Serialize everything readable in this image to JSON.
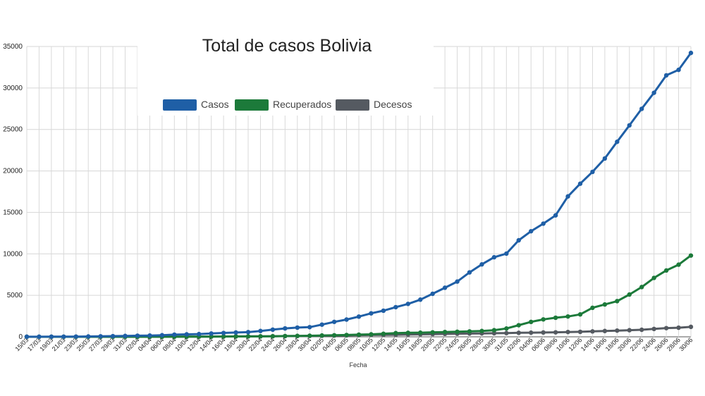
{
  "chart_data": {
    "type": "line",
    "title": "Total de casos Bolivia",
    "xlabel": "Fecha",
    "ylabel": "",
    "ylim": [
      0,
      35000
    ],
    "yticks": [
      "0",
      "5000",
      "10000",
      "15000",
      "20000",
      "25000",
      "30000",
      "35000"
    ],
    "grid": true,
    "legend_position": "top",
    "x_tick_labels": [
      "15/03",
      "17/03",
      "19/03",
      "21/03",
      "23/03",
      "25/03",
      "27/03",
      "29/03",
      "31/03",
      "02/04",
      "04/04",
      "06/04",
      "08/04",
      "10/04",
      "12/04",
      "14/04",
      "16/04",
      "18/04",
      "20/04",
      "22/04",
      "24/04",
      "26/04",
      "28/04",
      "30/04",
      "02/05",
      "04/05",
      "06/05",
      "08/05",
      "10/05",
      "12/05",
      "14/05",
      "16/05",
      "18/05",
      "20/05",
      "22/05",
      "24/05",
      "26/05",
      "28/05",
      "30/05",
      "31/05",
      "02/06",
      "04/06",
      "06/06",
      "08/06",
      "10/06",
      "12/06",
      "14/06",
      "16/06",
      "18/06",
      "20/06",
      "22/06",
      "24/06",
      "26/06",
      "28/06",
      "30/06"
    ],
    "x": [
      "15/03",
      "17/03",
      "19/03",
      "21/03",
      "23/03",
      "25/03",
      "27/03",
      "29/03",
      "31/03",
      "02/04",
      "04/04",
      "06/04",
      "08/04",
      "10/04",
      "12/04",
      "14/04",
      "16/04",
      "18/04",
      "20/04",
      "22/04",
      "24/04",
      "26/04",
      "28/04",
      "30/04",
      "02/05",
      "04/05",
      "06/05",
      "08/05",
      "10/05",
      "12/05",
      "14/05",
      "16/05",
      "18/05",
      "20/05",
      "22/05",
      "24/05",
      "26/05",
      "28/05",
      "30/05",
      "31/05",
      "02/06",
      "04/06",
      "06/06",
      "08/06",
      "10/06",
      "12/06",
      "14/06",
      "16/06",
      "18/06",
      "20/06",
      "22/06",
      "24/06",
      "26/06",
      "28/06",
      "30/06"
    ],
    "series": [
      {
        "name": "Casos",
        "color": "#1f5fa6",
        "values": [
          10,
          11,
          15,
          19,
          28,
          43,
          61,
          81,
          107,
          132,
          157,
          194,
          264,
          300,
          330,
          400,
          465,
          520,
          564,
          703,
          866,
          1014,
          1110,
          1167,
          1470,
          1802,
          2081,
          2437,
          2831,
          3148,
          3577,
          3969,
          4481,
          5187,
          5915,
          6660,
          7768,
          8731,
          9592,
          10031,
          11638,
          12728,
          13643,
          14644,
          16929,
          18459,
          19883,
          21499,
          23512,
          25493,
          27487,
          29423,
          31524,
          32187,
          34227
        ]
      },
      {
        "name": "Recuperados",
        "color": "#1c7a3a",
        "values": [
          0,
          0,
          0,
          0,
          0,
          0,
          1,
          2,
          3,
          4,
          5,
          8,
          10,
          14,
          20,
          25,
          33,
          40,
          45,
          55,
          70,
          90,
          110,
          130,
          160,
          190,
          220,
          260,
          300,
          370,
          450,
          480,
          500,
          540,
          580,
          610,
          650,
          700,
          800,
          1000,
          1400,
          1800,
          2100,
          2300,
          2450,
          2700,
          3500,
          3900,
          4300,
          5100,
          6000,
          7100,
          8000,
          8700,
          9800
        ]
      },
      {
        "name": "Decesos",
        "color": "#555a61",
        "values": [
          0,
          0,
          0,
          0,
          0,
          0,
          1,
          2,
          4,
          6,
          8,
          12,
          18,
          22,
          27,
          32,
          40,
          50,
          56,
          62,
          71,
          82,
          95,
          110,
          130,
          150,
          170,
          200,
          220,
          240,
          250,
          280,
          300,
          320,
          350,
          370,
          390,
          410,
          430,
          450,
          480,
          500,
          520,
          540,
          580,
          600,
          650,
          700,
          750,
          800,
          850,
          950,
          1050,
          1100,
          1200
        ]
      }
    ]
  }
}
